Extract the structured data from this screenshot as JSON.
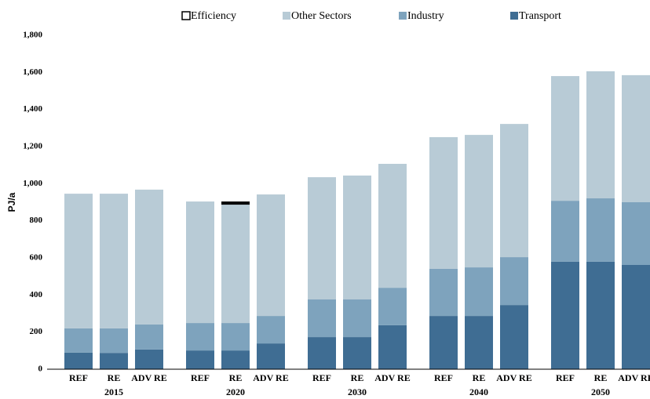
{
  "chart_data": {
    "type": "stacked_bar",
    "y_label": "PJ/a",
    "categories": [
      "REF",
      "RE",
      "ADV RE",
      "REF",
      "RE",
      "ADV RE",
      "REF",
      "RE",
      "ADV RE",
      "REF",
      "RE",
      "ADV RE",
      "REF",
      "RE",
      "ADV RE"
    ],
    "group_labels": [
      "2015",
      "2020",
      "2030",
      "2040",
      "2050"
    ],
    "series": [
      {
        "name": "Efficiency",
        "color": "#000000",
        "values": [
          null,
          null,
          null,
          null,
          17,
          null,
          null,
          null,
          null,
          null,
          null,
          null,
          null,
          null,
          null
        ]
      },
      {
        "name": "Other Sectors",
        "color": "#b8cbd6",
        "values": [
          726,
          726,
          727,
          655,
          638,
          655,
          659,
          668,
          668,
          710,
          714,
          718,
          672,
          685,
          685
        ]
      },
      {
        "name": "Industry",
        "color": "#7ea3bd",
        "values": [
          131,
          132,
          135,
          148,
          148,
          148,
          203,
          203,
          202,
          254,
          262,
          258,
          329,
          342,
          338
        ]
      },
      {
        "name": "Transport",
        "color": "#3f6d93",
        "values": [
          89,
          88,
          106,
          101,
          101,
          139,
          173,
          173,
          237,
          287,
          287,
          346,
          579,
          579,
          562
        ]
      }
    ],
    "ylim": [
      0,
      1800
    ],
    "yticks": [
      0,
      {
        "value": 200,
        "label": "200"
      },
      {
        "value": 400,
        "label": "400"
      },
      {
        "value": 600,
        "label": "600"
      },
      {
        "value": 800,
        "label": "800"
      },
      {
        "value": 1000,
        "label": "1,000"
      },
      {
        "value": 1200,
        "label": "1,200"
      },
      {
        "value": 1400,
        "label": "1,400"
      },
      {
        "value": 1600,
        "label": "1,600"
      },
      {
        "value": 1800,
        "label": "1,800"
      }
    ]
  }
}
